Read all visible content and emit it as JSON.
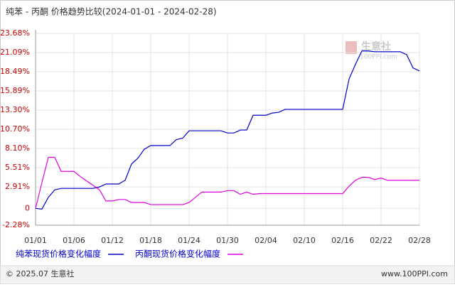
{
  "chart_data": {
    "type": "line",
    "title": "纯苯 - 丙酮 价格趋势比较(2024-01-01 - 2024-02-28)",
    "categories": [
      "01/01",
      null,
      null,
      null,
      null,
      null,
      "01/06",
      null,
      null,
      null,
      null,
      null,
      "01/12",
      null,
      null,
      null,
      null,
      null,
      "01/18",
      null,
      null,
      null,
      null,
      null,
      "01/24",
      null,
      null,
      null,
      null,
      null,
      "01/30",
      null,
      null,
      null,
      null,
      null,
      "02/04",
      null,
      null,
      null,
      null,
      null,
      "02/10",
      null,
      null,
      null,
      null,
      null,
      "02/16",
      null,
      null,
      null,
      null,
      null,
      "02/22",
      null,
      null,
      null,
      null,
      null,
      "02/28"
    ],
    "series": [
      {
        "name": "纯苯现货价格变化幅度",
        "color": "#0000cc",
        "values": [
          0,
          -0.1,
          1.5,
          2.5,
          2.7,
          2.7,
          2.7,
          2.7,
          2.7,
          2.7,
          2.9,
          3.3,
          3.3,
          3.3,
          3.8,
          6.0,
          6.8,
          8.0,
          8.5,
          8.5,
          8.5,
          8.5,
          9.3,
          9.5,
          10.5,
          10.5,
          10.5,
          10.5,
          10.5,
          10.5,
          10.2,
          10.2,
          10.6,
          10.6,
          12.6,
          12.6,
          12.6,
          12.9,
          13.0,
          13.4,
          13.4,
          13.4,
          13.4,
          13.4,
          13.4,
          13.4,
          13.4,
          13.4,
          13.4,
          17.5,
          19.5,
          21.3,
          21.3,
          21.2,
          21.2,
          21.2,
          21.2,
          21.2,
          20.8,
          19.0,
          18.6
        ]
      },
      {
        "name": "丙酮现货价格变化幅度",
        "color": "#e000e0",
        "values": [
          0,
          3.5,
          6.9,
          6.9,
          5.0,
          5.0,
          5.0,
          4.3,
          3.7,
          3.1,
          2.5,
          1.0,
          1.0,
          1.2,
          1.2,
          0.8,
          0.8,
          0.8,
          0.5,
          0.5,
          0.5,
          0.5,
          0.5,
          0.5,
          0.8,
          1.5,
          2.2,
          2.2,
          2.2,
          2.2,
          2.4,
          2.4,
          1.9,
          2.2,
          1.9,
          2.0,
          2.0,
          2.0,
          2.0,
          2.0,
          2.0,
          2.0,
          2.0,
          2.0,
          2.0,
          2.0,
          2.0,
          2.0,
          2.0,
          3.0,
          3.8,
          4.2,
          4.2,
          3.9,
          4.1,
          3.8,
          3.8,
          3.8,
          3.8,
          3.8,
          3.8
        ]
      }
    ],
    "ylim": [
      -2.28,
      23.68
    ],
    "yticks": [
      {
        "value": -2.28,
        "label": "-2.28%"
      },
      0,
      {
        "value": 2.91,
        "label": "2.91%"
      },
      {
        "value": 5.51,
        "label": "5.51%"
      },
      {
        "value": 8.1,
        "label": "8.10%"
      },
      {
        "value": 10.7,
        "label": "10.70%"
      },
      {
        "value": 13.3,
        "label": "13.30%"
      },
      {
        "value": 15.89,
        "label": "15.89%"
      },
      {
        "value": 18.49,
        "label": "18.49%"
      },
      {
        "value": 21.09,
        "label": "21.09%"
      },
      {
        "value": 23.68,
        "label": "23.68%"
      }
    ],
    "grid": true,
    "watermark": "生意社",
    "watermark_url": "100PPI.com",
    "footer_left": "© 2025.07 生意社",
    "footer_right": "www.100PPI.com"
  }
}
